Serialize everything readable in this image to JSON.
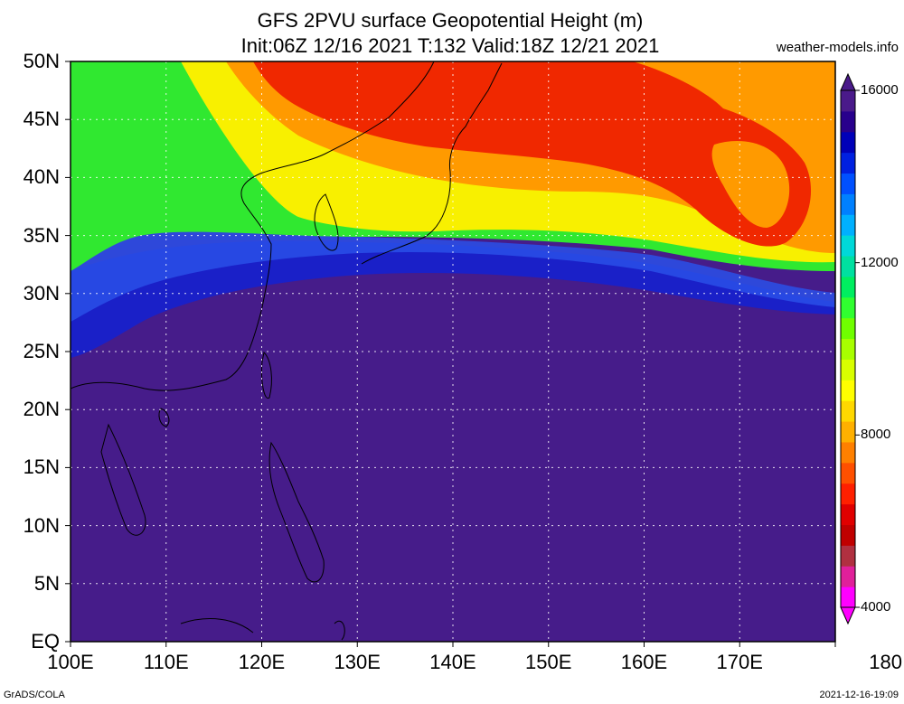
{
  "title": {
    "line1": "GFS 2PVU surface Geopotential Height (m)",
    "line2": "Init:06Z 12/16 2021 T:132 Valid:18Z 12/21 2021"
  },
  "credit": "weather-models.info",
  "footer": {
    "left": "GrADS/COLA",
    "right": "2021-12-16-19:09"
  },
  "map": {
    "lat_labels": [
      {
        "value": 50,
        "text": "50N"
      },
      {
        "value": 45,
        "text": "45N"
      },
      {
        "value": 40,
        "text": "40N"
      },
      {
        "value": 35,
        "text": "35N"
      },
      {
        "value": 30,
        "text": "30N"
      },
      {
        "value": 25,
        "text": "25N"
      },
      {
        "value": 20,
        "text": "20N"
      },
      {
        "value": 15,
        "text": "15N"
      },
      {
        "value": 10,
        "text": "10N"
      },
      {
        "value": 5,
        "text": "5N"
      },
      {
        "value": 0,
        "text": "EQ"
      }
    ],
    "lon_labels": [
      {
        "value": 100,
        "text": "100E"
      },
      {
        "value": 110,
        "text": "110E"
      },
      {
        "value": 120,
        "text": "120E"
      },
      {
        "value": 130,
        "text": "130E"
      },
      {
        "value": 140,
        "text": "140E"
      },
      {
        "value": 150,
        "text": "150E"
      },
      {
        "value": 160,
        "text": "160E"
      },
      {
        "value": 170,
        "text": "170E"
      },
      {
        "value": 180,
        "text": "180"
      }
    ],
    "lat_range": [
      0,
      50
    ],
    "lon_range": [
      100,
      180
    ]
  },
  "colorbar": {
    "labels": [
      {
        "value": 16000,
        "text": "16000"
      },
      {
        "value": 12000,
        "text": "12000"
      },
      {
        "value": 8000,
        "text": "8000"
      },
      {
        "value": 4000,
        "text": "4000"
      }
    ],
    "range": [
      4000,
      16000
    ],
    "colors": [
      "#ff00ff",
      "#e0209a",
      "#b03040",
      "#c00000",
      "#e00000",
      "#ff2000",
      "#ff5000",
      "#ff8000",
      "#ffb000",
      "#ffd800",
      "#ffff00",
      "#d8ff00",
      "#a8ff00",
      "#70ff00",
      "#30ff30",
      "#00ee60",
      "#00e0a0",
      "#00d8d8",
      "#00b0ff",
      "#0080ff",
      "#0050ff",
      "#0020e0",
      "#0000b8",
      "#28008c",
      "#4a1a8a"
    ]
  },
  "field_colors": {
    "tropics": "#461c8a",
    "deep_blue": "#1a20c8",
    "green": "#30e830",
    "yellow": "#f8f000",
    "orange": "#ff9a00",
    "red": "#f02800",
    "coast": "#000000"
  }
}
